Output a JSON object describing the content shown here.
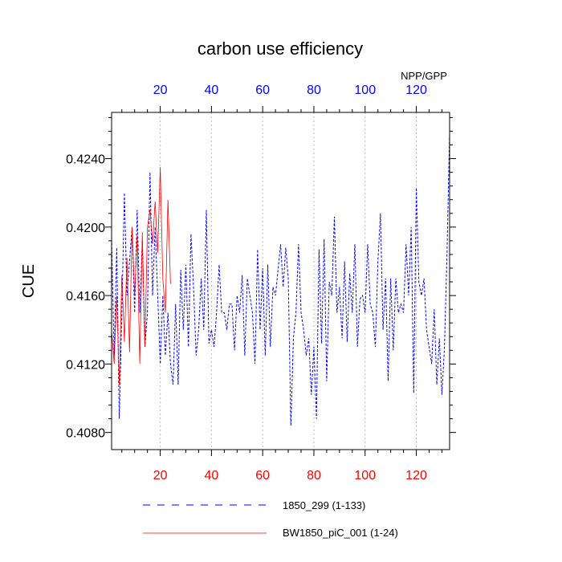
{
  "chart_data": {
    "type": "line",
    "title": "carbon use efficiency",
    "ylabel": "CUE",
    "top_label": "NPP/GPP",
    "xlim": [
      1,
      133
    ],
    "ylim": [
      0.407,
      0.4267
    ],
    "x_ticks": [
      20,
      40,
      60,
      80,
      100,
      120
    ],
    "x_tick_labels": [
      "20",
      "40",
      "60",
      "80",
      "100",
      "120"
    ],
    "y_ticks": [
      0.408,
      0.412,
      0.416,
      0.42,
      0.424
    ],
    "y_tick_labels": [
      "0.4080",
      "0.4120",
      "0.4160",
      "0.4200",
      "0.4240"
    ],
    "grid": "vertical dotted at major x ticks",
    "colors": {
      "bottom_ticks": "#ff0000",
      "top_ticks": "#0000ff",
      "series_1": "#0000ff",
      "series_2": "#ff0000"
    },
    "series": [
      {
        "name": "1850_299 (1-133)",
        "style": "dashed",
        "x_start": 1,
        "values": [
          0.4193,
          0.4125,
          0.4188,
          0.4088,
          0.415,
          0.422,
          0.416,
          0.418,
          0.42,
          0.415,
          0.421,
          0.415,
          0.4192,
          0.413,
          0.415,
          0.4232,
          0.416,
          0.42,
          0.416,
          0.412,
          0.416,
          0.4125,
          0.415,
          0.412,
          0.4108,
          0.4155,
          0.4108,
          0.4175,
          0.414,
          0.4178,
          0.413,
          0.4196,
          0.4165,
          0.4125,
          0.414,
          0.417,
          0.414,
          0.421,
          0.4132,
          0.414,
          0.413,
          0.415,
          0.4178,
          0.415,
          0.415,
          0.414,
          0.4155,
          0.4155,
          0.4128,
          0.416,
          0.415,
          0.4172,
          0.4125,
          0.417,
          0.416,
          0.415,
          0.412,
          0.4187,
          0.414,
          0.4176,
          0.4125,
          0.4178,
          0.413,
          0.4165,
          0.416,
          0.4175,
          0.419,
          0.4165,
          0.4188,
          0.417,
          0.4084,
          0.4135,
          0.415,
          0.419,
          0.415,
          0.414,
          0.4125,
          0.4135,
          0.4102,
          0.413,
          0.4088,
          0.4187,
          0.4132,
          0.4193,
          0.411,
          0.4168,
          0.416,
          0.4206,
          0.415,
          0.4165,
          0.4135,
          0.418,
          0.4133,
          0.4173,
          0.415,
          0.419,
          0.413,
          0.4158,
          0.416,
          0.415,
          0.419,
          0.4155,
          0.415,
          0.413,
          0.418,
          0.4208,
          0.414,
          0.417,
          0.411,
          0.417,
          0.4128,
          0.417,
          0.415,
          0.4155,
          0.415,
          0.419,
          0.416,
          0.42,
          0.4103,
          0.4223,
          0.4168,
          0.416,
          0.417,
          0.414,
          0.413,
          0.412,
          0.4152,
          0.4108,
          0.4135,
          0.4102,
          0.413,
          0.4185,
          0.4255
        ]
      },
      {
        "name": "BW1850_piC_001 (1-24)",
        "style": "solid",
        "x_start": 1,
        "values": [
          0.414,
          0.412,
          0.416,
          0.4108,
          0.4172,
          0.4133,
          0.4182,
          0.4127,
          0.42,
          0.416,
          0.4195,
          0.412,
          0.4197,
          0.413,
          0.42,
          0.421,
          0.419,
          0.4215,
          0.4185,
          0.4235,
          0.417,
          0.415,
          0.4216,
          0.4167
        ]
      }
    ],
    "legend": {
      "placement": "bottom-center",
      "entries": [
        "1850_299 (1-133)",
        "BW1850_piC_001 (1-24)"
      ]
    }
  }
}
